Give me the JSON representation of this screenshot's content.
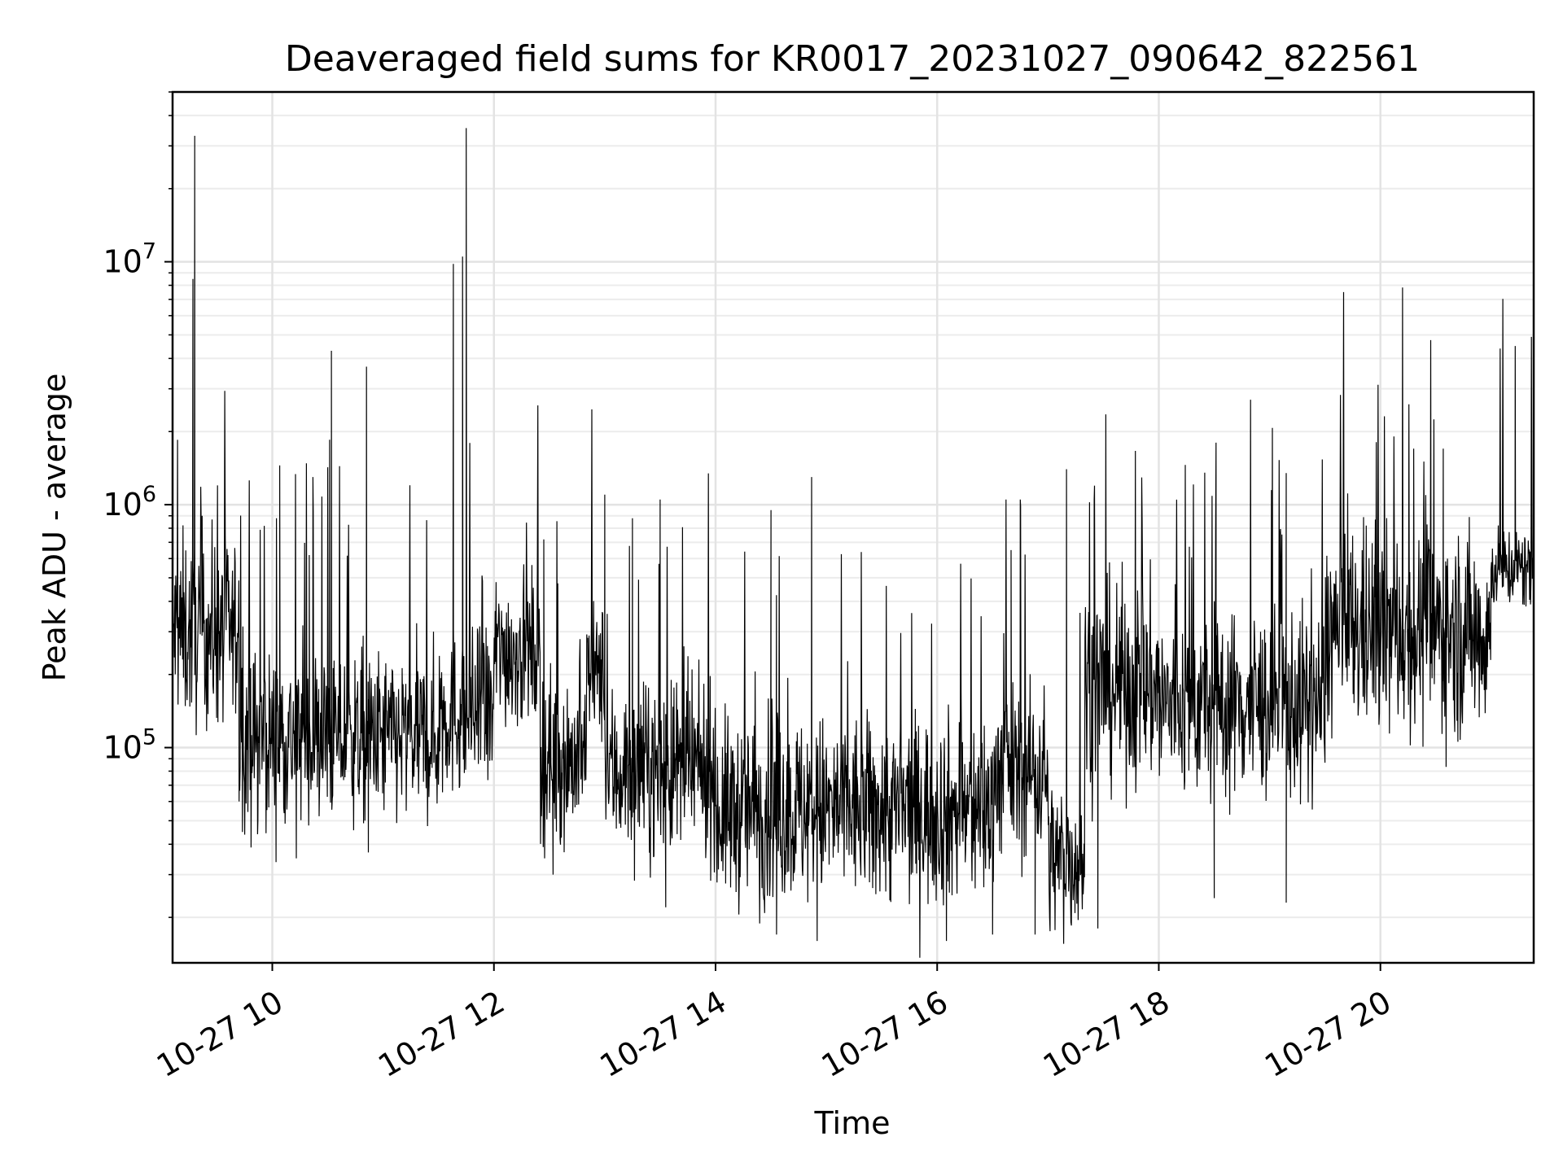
{
  "chart_data": {
    "type": "line",
    "title": "Deaveraged field sums for KR0017_20231027_090642_822561",
    "xlabel": "Time",
    "ylabel": "Peak ADU - average",
    "yscale": "log",
    "grid": true,
    "line_color": "#000000",
    "x_ticks": [
      "10-27 10",
      "10-27 12",
      "10-27 14",
      "10-27 16",
      "10-27 18",
      "10-27 20"
    ],
    "y_ticks": [
      {
        "base": "10",
        "exp": "5"
      },
      {
        "base": "10",
        "exp": "6"
      },
      {
        "base": "10",
        "exp": "7"
      }
    ],
    "xlim": [
      "2023-10-27 09:06",
      "2023-10-27 21:23"
    ],
    "ylim": [
      13000,
      50000000
    ],
    "segments": [
      {
        "start": "2023-10-27 09:06",
        "end": "2023-10-27 09:42",
        "median": 300000,
        "spread": 0.55
      },
      {
        "start": "2023-10-27 09:42",
        "end": "2023-10-27 11:30",
        "median": 110000,
        "spread": 0.5
      },
      {
        "start": "2023-10-27 11:30",
        "end": "2023-10-27 12:00",
        "median": 140000,
        "spread": 0.5
      },
      {
        "start": "2023-10-27 12:00",
        "end": "2023-10-27 12:25",
        "median": 250000,
        "spread": 0.45
      },
      {
        "start": "2023-10-27 12:25",
        "end": "2023-10-27 12:50",
        "median": 90000,
        "spread": 0.5
      },
      {
        "start": "2023-10-27 12:50",
        "end": "2023-10-27 13:00",
        "median": 200000,
        "spread": 0.4
      },
      {
        "start": "2023-10-27 13:00",
        "end": "2023-10-27 14:00",
        "median": 80000,
        "spread": 0.5
      },
      {
        "start": "2023-10-27 14:00",
        "end": "2023-10-27 16:30",
        "median": 55000,
        "spread": 0.55
      },
      {
        "start": "2023-10-27 16:30",
        "end": "2023-10-27 17:00",
        "median": 80000,
        "spread": 0.5
      },
      {
        "start": "2023-10-27 17:00",
        "end": "2023-10-27 17:20",
        "median": 35000,
        "spread": 0.45
      },
      {
        "start": "2023-10-27 17:20",
        "end": "2023-10-27 18:00",
        "median": 180000,
        "spread": 0.6
      },
      {
        "start": "2023-10-27 18:00",
        "end": "2023-10-27 19:30",
        "median": 150000,
        "spread": 0.55
      },
      {
        "start": "2023-10-27 19:30",
        "end": "2023-10-27 21:00",
        "median": 300000,
        "spread": 0.6
      },
      {
        "start": "2023-10-27 21:00",
        "end": "2023-10-27 21:23",
        "median": 550000,
        "spread": 0.25
      }
    ],
    "spikes": [
      {
        "x": "2023-10-27 09:18",
        "y": 33000000
      },
      {
        "x": "2023-10-27 09:17",
        "y": 8500000
      },
      {
        "x": "2023-10-27 09:22",
        "y": 900000
      },
      {
        "x": "2023-10-27 10:04",
        "y": 1450000
      },
      {
        "x": "2023-10-27 10:20",
        "y": 620000
      },
      {
        "x": "2023-10-27 10:22",
        "y": 1300000
      },
      {
        "x": "2023-10-27 10:31",
        "y": 1850000
      },
      {
        "x": "2023-10-27 10:32",
        "y": 4300000
      },
      {
        "x": "2023-10-27 10:51",
        "y": 3700000
      },
      {
        "x": "2023-10-27 11:38",
        "y": 9800000
      },
      {
        "x": "2023-10-27 11:43",
        "y": 10500000
      },
      {
        "x": "2023-10-27 11:45",
        "y": 35500000
      },
      {
        "x": "2023-10-27 12:27",
        "y": 720000
      },
      {
        "x": "2023-10-27 13:00",
        "y": 1100000
      },
      {
        "x": "2023-10-27 13:15",
        "y": 880000
      },
      {
        "x": "2023-10-27 13:30",
        "y": 1050000
      },
      {
        "x": "2023-10-27 14:30",
        "y": 950000
      },
      {
        "x": "2023-10-27 14:52",
        "y": 1300000
      },
      {
        "x": "2023-10-27 16:40",
        "y": 650000
      },
      {
        "x": "2023-10-27 16:45",
        "y": 1050000
      },
      {
        "x": "2023-10-27 17:10",
        "y": 1400000
      },
      {
        "x": "2023-10-27 17:25",
        "y": 1050000
      },
      {
        "x": "2023-10-27 18:31",
        "y": 1800000
      },
      {
        "x": "2023-10-27 19:09",
        "y": 1350000
      },
      {
        "x": "2023-10-27 20:18",
        "y": 1700000
      },
      {
        "x": "2023-10-27 20:34",
        "y": 1700000
      },
      {
        "x": "2023-10-27 21:13",
        "y": 4500000
      }
    ],
    "dips": [
      {
        "x": "2023-10-27 09:42",
        "y": 60000
      },
      {
        "x": "2023-10-27 09:52",
        "y": 44000
      },
      {
        "x": "2023-10-27 10:13",
        "y": 35000
      },
      {
        "x": "2023-10-27 10:52",
        "y": 37000
      },
      {
        "x": "2023-10-27 12:32",
        "y": 30000
      },
      {
        "x": "2023-10-27 13:33",
        "y": 22000
      },
      {
        "x": "2023-10-27 14:33",
        "y": 17000
      },
      {
        "x": "2023-10-27 14:55",
        "y": 16000
      },
      {
        "x": "2023-10-27 16:05",
        "y": 16000
      },
      {
        "x": "2023-10-27 16:30",
        "y": 17000
      },
      {
        "x": "2023-10-27 16:53",
        "y": 17000
      },
      {
        "x": "2023-10-27 17:27",
        "y": 18000
      },
      {
        "x": "2023-10-27 18:30",
        "y": 24000
      },
      {
        "x": "2023-10-27 19:09",
        "y": 23000
      }
    ]
  }
}
